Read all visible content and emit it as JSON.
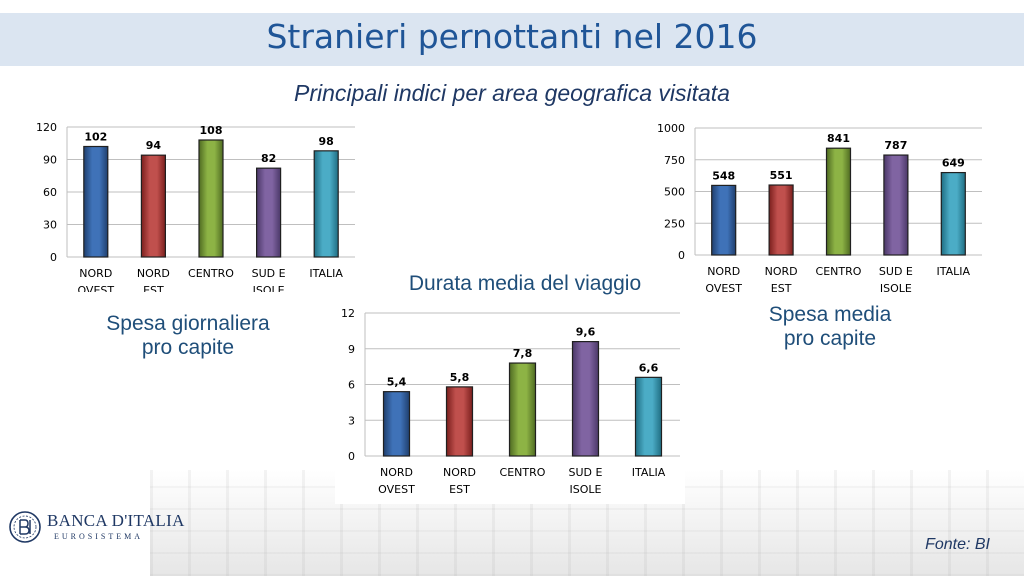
{
  "header": {
    "title": "Stranieri pernottanti nel 2016",
    "subtitle": "Principali indici per area geografica visitata"
  },
  "captions": {
    "left": [
      "Spesa giornaliera",
      "pro capite"
    ],
    "middle": "Durata media del viaggio",
    "right": [
      "Spesa media",
      "pro capite"
    ]
  },
  "footer": {
    "logo_name": "BANCA D'ITALIA",
    "logo_sub": "EUROSISTEMA",
    "source": "Fonte: BI"
  },
  "colors": {
    "title_band": "#dbe5f1",
    "title_text": "#1f5597",
    "bars": [
      "#3f72b8",
      "#c0504d",
      "#8db345",
      "#8064a2",
      "#4bacc6"
    ],
    "bar_dark": [
      "#1f3f6e",
      "#7a1f1d",
      "#4f6b22",
      "#4b3868",
      "#1f6d82"
    ]
  },
  "chart_data": [
    {
      "id": "spesa-giornaliera",
      "type": "bar",
      "categories": [
        [
          "NORD",
          "OVEST"
        ],
        [
          "NORD",
          "EST"
        ],
        [
          "CENTRO"
        ],
        [
          "SUD E",
          "ISOLE"
        ],
        [
          "ITALIA"
        ]
      ],
      "values": [
        102,
        94,
        108,
        82,
        98
      ],
      "value_labels": [
        "102",
        "94",
        "108",
        "82",
        "98"
      ],
      "ylim": [
        0,
        120
      ],
      "yticks": [
        0,
        30,
        60,
        90,
        120
      ],
      "ytick_labels": [
        "0",
        "30",
        "60",
        "90",
        "120"
      ],
      "grid": true
    },
    {
      "id": "durata-media",
      "type": "bar",
      "categories": [
        [
          "NORD",
          "OVEST"
        ],
        [
          "NORD",
          "EST"
        ],
        [
          "CENTRO"
        ],
        [
          "SUD E",
          "ISOLE"
        ],
        [
          "ITALIA"
        ]
      ],
      "values": [
        5.4,
        5.8,
        7.8,
        9.6,
        6.6
      ],
      "value_labels": [
        "5,4",
        "5,8",
        "7,8",
        "9,6",
        "6,6"
      ],
      "ylim": [
        0,
        12
      ],
      "yticks": [
        0,
        3,
        6,
        9,
        12
      ],
      "ytick_labels": [
        "0",
        "3",
        "6",
        "9",
        "12"
      ],
      "grid": true
    },
    {
      "id": "spesa-media",
      "type": "bar",
      "categories": [
        [
          "NORD",
          "OVEST"
        ],
        [
          "NORD",
          "EST"
        ],
        [
          "CENTRO"
        ],
        [
          "SUD E",
          "ISOLE"
        ],
        [
          "ITALIA"
        ]
      ],
      "values": [
        548,
        551,
        841,
        787,
        649
      ],
      "value_labels": [
        "548",
        "551",
        "841",
        "787",
        "649"
      ],
      "ylim": [
        0,
        1000
      ],
      "yticks": [
        0,
        250,
        500,
        750,
        1000
      ],
      "ytick_labels": [
        "0",
        "250",
        "500",
        "750",
        "1000"
      ],
      "grid": true
    }
  ]
}
